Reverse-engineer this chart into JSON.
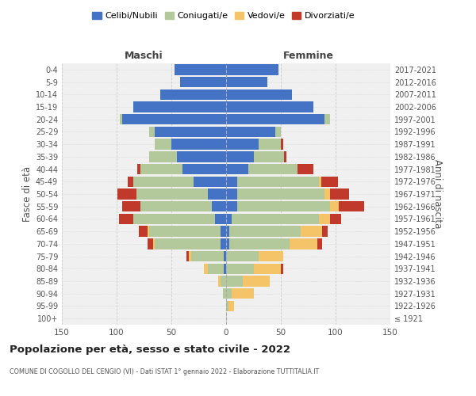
{
  "age_groups": [
    "100+",
    "95-99",
    "90-94",
    "85-89",
    "80-84",
    "75-79",
    "70-74",
    "65-69",
    "60-64",
    "55-59",
    "50-54",
    "45-49",
    "40-44",
    "35-39",
    "30-34",
    "25-29",
    "20-24",
    "15-19",
    "10-14",
    "5-9",
    "0-4"
  ],
  "birth_years": [
    "≤ 1921",
    "1922-1926",
    "1927-1931",
    "1932-1936",
    "1937-1941",
    "1942-1946",
    "1947-1951",
    "1952-1956",
    "1957-1961",
    "1962-1966",
    "1967-1971",
    "1972-1976",
    "1977-1981",
    "1982-1986",
    "1987-1991",
    "1992-1996",
    "1997-2001",
    "2002-2006",
    "2007-2011",
    "2012-2016",
    "2017-2021"
  ],
  "males": {
    "celibi": [
      0,
      0,
      0,
      0,
      2,
      2,
      5,
      5,
      10,
      13,
      17,
      30,
      40,
      45,
      50,
      65,
      95,
      85,
      60,
      42,
      47
    ],
    "coniugati": [
      0,
      0,
      3,
      5,
      15,
      30,
      60,
      65,
      75,
      65,
      65,
      55,
      38,
      25,
      15,
      5,
      2,
      0,
      0,
      0,
      0
    ],
    "vedovi": [
      0,
      0,
      0,
      2,
      3,
      2,
      2,
      2,
      0,
      0,
      0,
      0,
      0,
      0,
      0,
      0,
      0,
      0,
      0,
      0,
      0
    ],
    "divorziati": [
      0,
      0,
      0,
      0,
      0,
      2,
      5,
      8,
      13,
      17,
      17,
      5,
      3,
      0,
      0,
      0,
      0,
      0,
      0,
      0,
      0
    ]
  },
  "females": {
    "nubili": [
      0,
      0,
      0,
      0,
      0,
      0,
      3,
      3,
      5,
      10,
      10,
      10,
      20,
      25,
      30,
      45,
      90,
      80,
      60,
      38,
      48
    ],
    "coniugate": [
      0,
      2,
      5,
      15,
      25,
      30,
      55,
      65,
      80,
      85,
      80,
      75,
      45,
      28,
      20,
      5,
      5,
      0,
      0,
      0,
      0
    ],
    "vedove": [
      0,
      5,
      20,
      25,
      25,
      22,
      25,
      20,
      10,
      8,
      5,
      2,
      0,
      0,
      0,
      0,
      0,
      0,
      0,
      0,
      0
    ],
    "divorziate": [
      0,
      0,
      0,
      0,
      2,
      0,
      5,
      5,
      10,
      23,
      17,
      15,
      15,
      2,
      2,
      0,
      0,
      0,
      0,
      0,
      0
    ]
  },
  "colors": {
    "celibi": "#4472c4",
    "coniugati": "#b3c99c",
    "vedovi": "#f5c469",
    "divorziati": "#c0392b"
  },
  "legend_labels": [
    "Celibi/Nubili",
    "Coniugati/e",
    "Vedovi/e",
    "Divorziati/e"
  ],
  "xlim": 150,
  "title": "Popolazione per età, sesso e stato civile - 2022",
  "subtitle": "COMUNE DI COGOLLO DEL CENGIO (VI) - Dati ISTAT 1° gennaio 2022 - Elaborazione TUTTITALIA.IT",
  "ylabel_left": "Fasce di età",
  "ylabel_right": "Anni di nascita",
  "xlabel_maschi": "Maschi",
  "xlabel_femmine": "Femmine",
  "bg_color": "#f0f0f0",
  "grid_color": "#cccccc"
}
